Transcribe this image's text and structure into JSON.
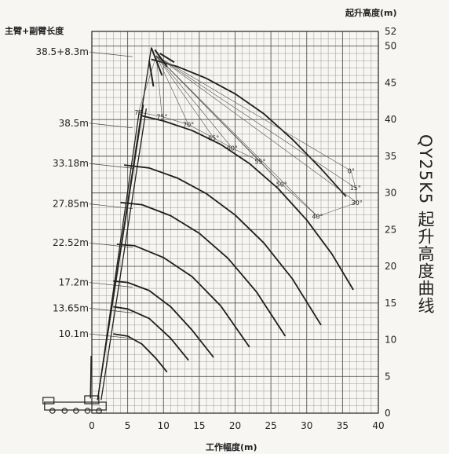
{
  "chart_data": {
    "type": "line",
    "title": "QY25K5 起升高度曲线",
    "xlabel": "工作幅度(m)",
    "ylabel_right": "起升高度(m)",
    "ylabel_left": "主臂+副臂长度",
    "xlim": [
      0,
      40
    ],
    "ylim": [
      0,
      52
    ],
    "grid": true,
    "x_ticks": [
      "0",
      "5",
      "10",
      "15",
      "20",
      "25",
      "30",
      "35",
      "40"
    ],
    "y_ticks": [
      "0",
      "5",
      "10",
      "15",
      "20",
      "25",
      "30",
      "35",
      "40",
      "45",
      "50",
      "52"
    ],
    "boom_length_labels": [
      {
        "label": "38.5+8.3m",
        "height": 49.2
      },
      {
        "label": "38.5m",
        "height": 39.5
      },
      {
        "label": "33.18m",
        "height": 34.0
      },
      {
        "label": "27.85m",
        "height": 28.5
      },
      {
        "label": "22.52m",
        "height": 23.2
      },
      {
        "label": "17.2m",
        "height": 17.8
      },
      {
        "label": "13.65m",
        "height": 14.3
      },
      {
        "label": "10.1m",
        "height": 10.8
      }
    ],
    "series": [
      {
        "name": "38.5+8.3m",
        "x": [
          8.3,
          12,
          16,
          20,
          24,
          28,
          32,
          35.5
        ],
        "y": [
          48.2,
          47.2,
          45.6,
          43.5,
          40.8,
          37.3,
          33.3,
          29.5
        ]
      },
      {
        "name": "38.5m",
        "x": [
          7.0,
          10,
          14,
          18,
          22,
          26,
          30,
          33.5,
          36.5
        ],
        "y": [
          40.5,
          39.8,
          38.5,
          36.6,
          34.0,
          30.6,
          26.3,
          21.7,
          16.8
        ]
      },
      {
        "name": "33.18m",
        "x": [
          4.5,
          8,
          12,
          16,
          20,
          24,
          28,
          32
        ],
        "y": [
          33.8,
          33.4,
          32.0,
          29.9,
          27.0,
          23.2,
          18.3,
          12.0
        ]
      },
      {
        "name": "27.85m",
        "x": [
          4.0,
          7,
          11,
          15,
          19,
          23,
          27
        ],
        "y": [
          28.7,
          28.4,
          26.9,
          24.5,
          21.1,
          16.5,
          10.5
        ]
      },
      {
        "name": "22.52m",
        "x": [
          3.5,
          6,
          10,
          14,
          18,
          22
        ],
        "y": [
          23.0,
          22.8,
          21.2,
          18.6,
          14.6,
          9.0
        ]
      },
      {
        "name": "17.2m",
        "x": [
          3.0,
          5,
          8,
          11,
          14,
          17
        ],
        "y": [
          18.0,
          17.8,
          16.7,
          14.5,
          11.3,
          7.6
        ]
      },
      {
        "name": "13.65m",
        "x": [
          3.0,
          5,
          8,
          11,
          13.5
        ],
        "y": [
          14.5,
          14.2,
          12.9,
          10.2,
          7.2
        ]
      },
      {
        "name": "10.1m",
        "x": [
          3.0,
          5,
          7,
          9,
          10.5
        ],
        "y": [
          10.8,
          10.5,
          9.4,
          7.4,
          5.6
        ]
      }
    ],
    "jib_angles": [
      {
        "label": "78",
        "x": 6.5,
        "y": 41.0
      },
      {
        "label": "75°",
        "x": 9.8,
        "y": 40.4
      },
      {
        "label": "70°",
        "x": 13.5,
        "y": 39.3
      },
      {
        "label": "65°",
        "x": 17.0,
        "y": 37.5
      },
      {
        "label": "60°",
        "x": 19.6,
        "y": 36.1
      },
      {
        "label": "55°",
        "x": 23.5,
        "y": 34.3
      },
      {
        "label": "50°",
        "x": 26.5,
        "y": 31.2
      },
      {
        "label": "40°",
        "x": 31.5,
        "y": 26.8
      },
      {
        "label": "30°",
        "x": 37.0,
        "y": 28.7
      },
      {
        "label": "15°",
        "x": 36.8,
        "y": 30.7
      },
      {
        "label": "0°",
        "x": 36.2,
        "y": 33.0
      }
    ]
  }
}
